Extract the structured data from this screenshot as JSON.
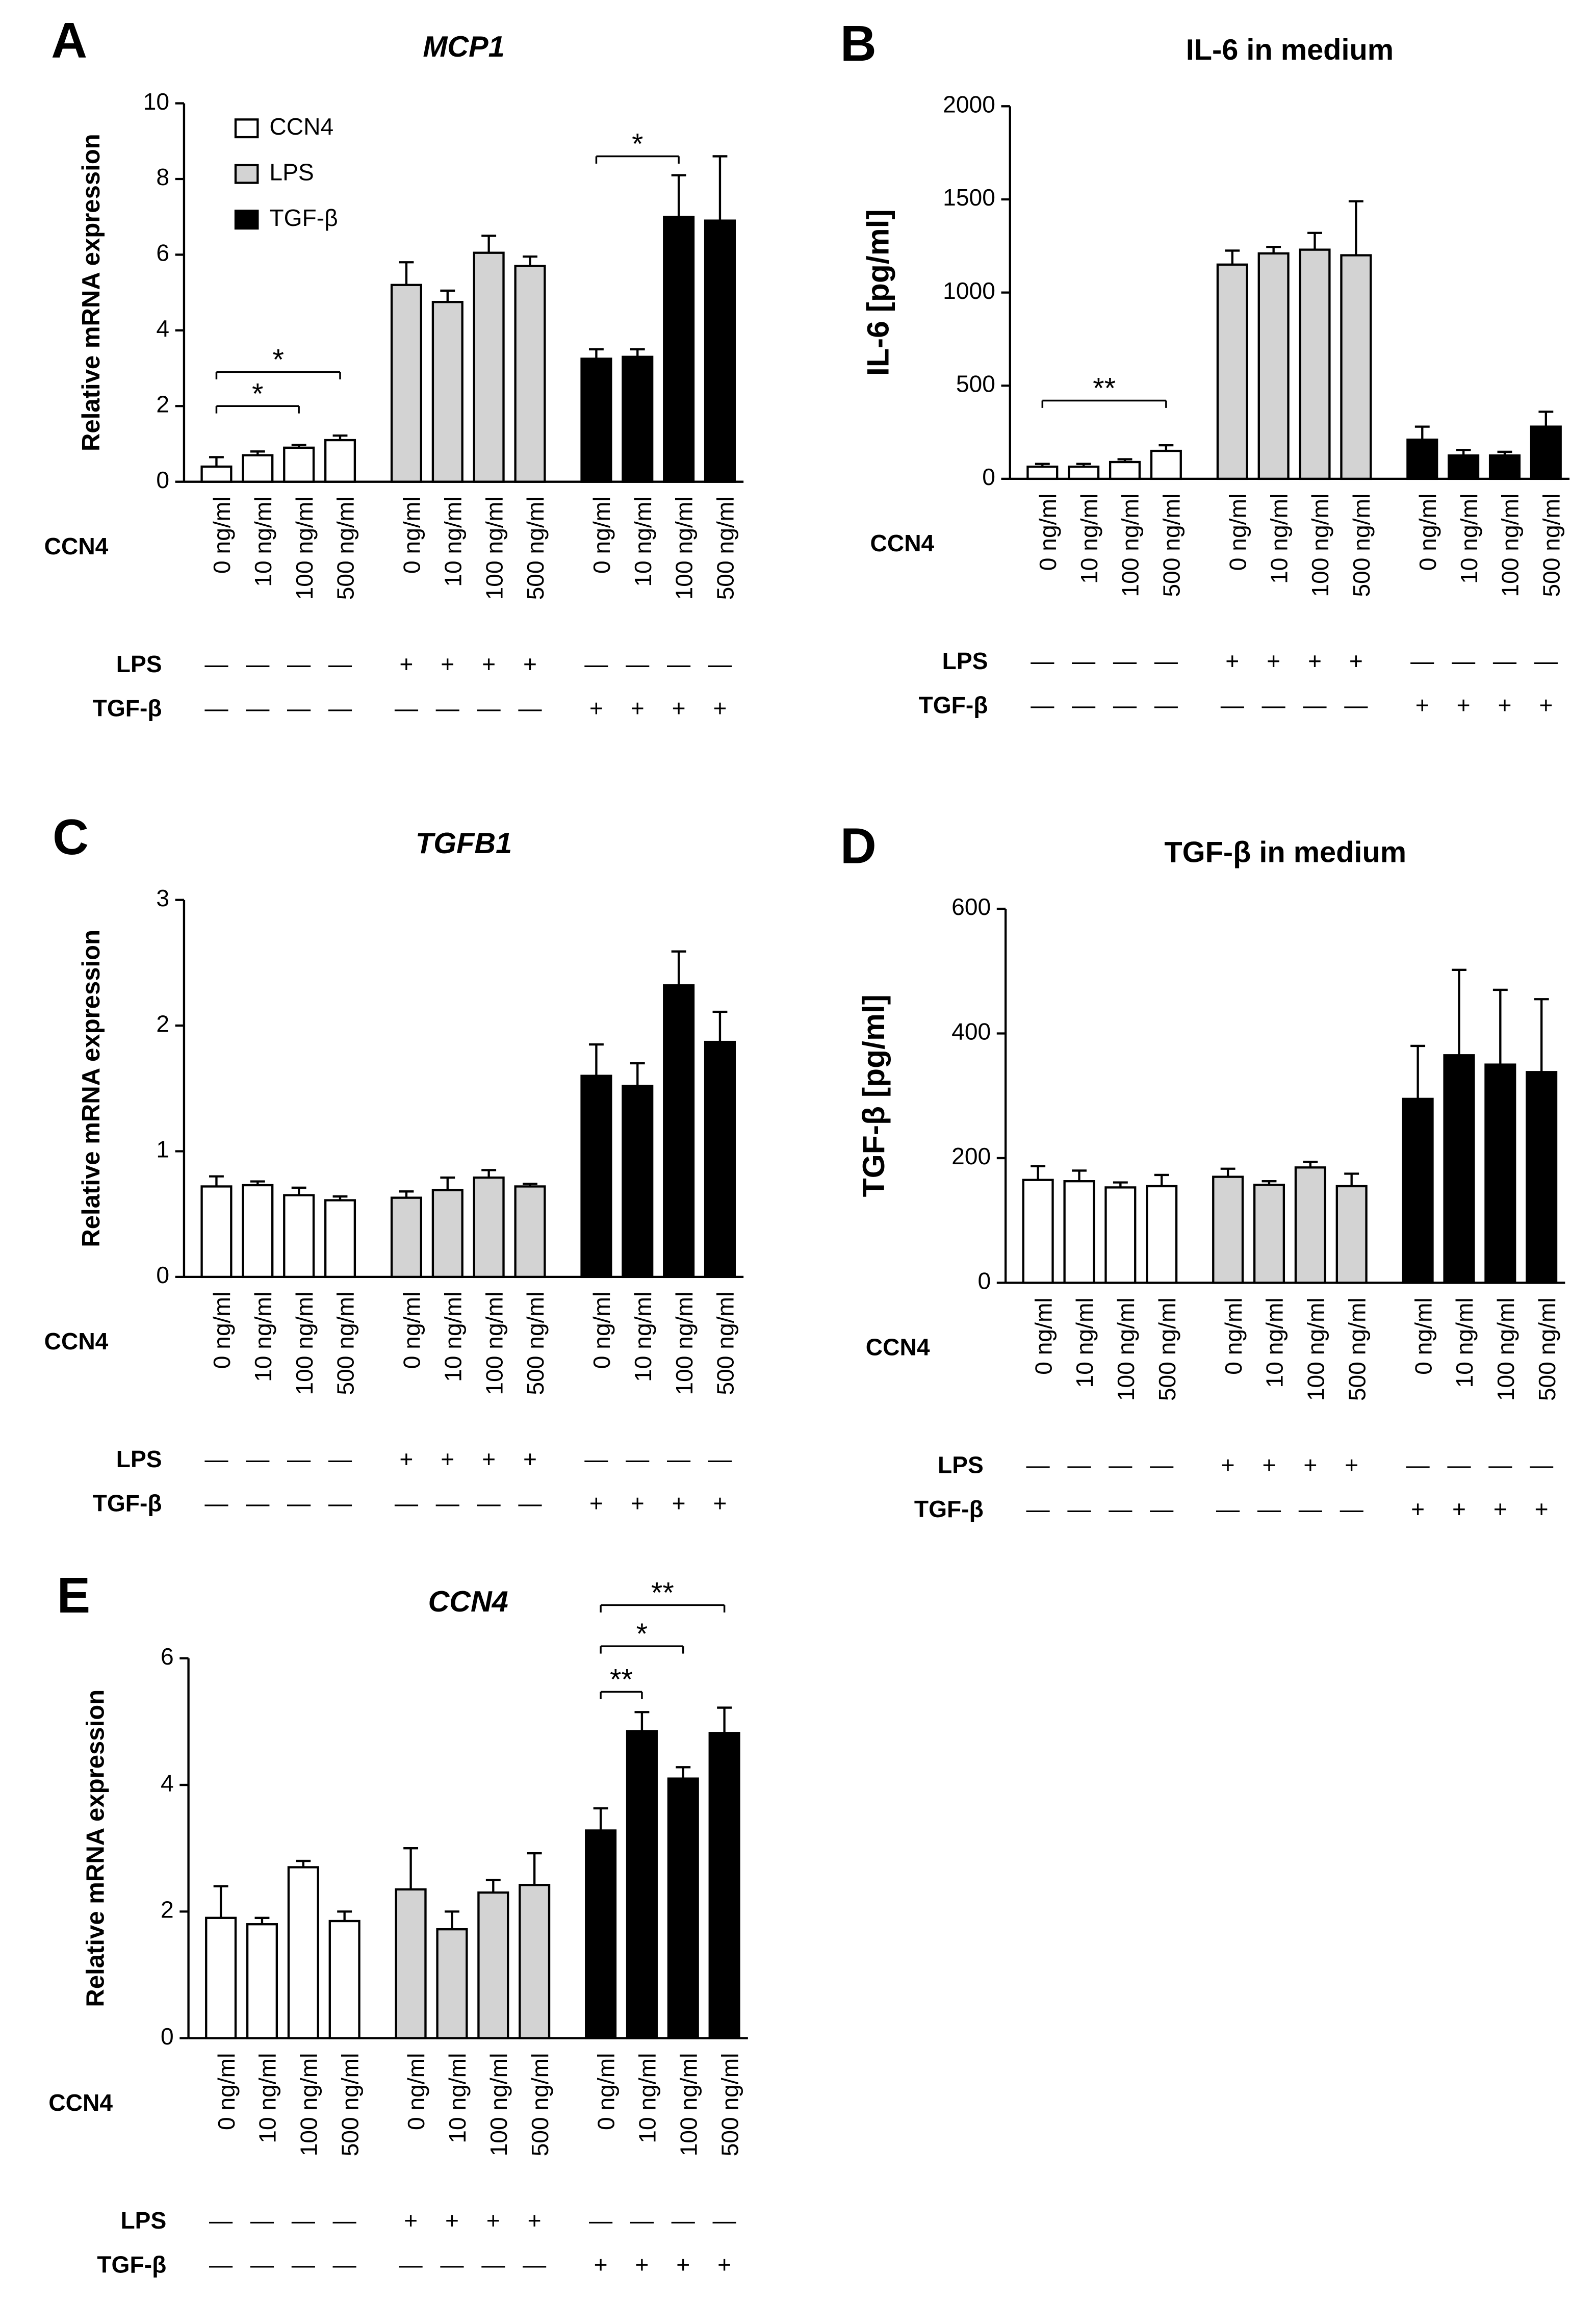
{
  "chart_data": [
    {
      "type": "bar",
      "panel": "A",
      "title": "MCP1",
      "title_italic": true,
      "ylabel": "Relative mRNA expression",
      "xlabel": "CCN4",
      "categories": [
        "0 ng/ml",
        "10 ng/ml",
        "100 ng/ml",
        "500 ng/ml"
      ],
      "ylim": [
        0,
        10
      ],
      "yticks": [
        0,
        2,
        4,
        6,
        8,
        10
      ],
      "legend": "upper left",
      "series": [
        {
          "name": "CCN4",
          "color": "#ffffff",
          "values": [
            0.4,
            0.7,
            0.9,
            1.1
          ],
          "errors": [
            0.25,
            0.1,
            0.07,
            0.12
          ]
        },
        {
          "name": "LPS",
          "color": "#d3d3d3",
          "values": [
            5.2,
            4.75,
            6.05,
            5.7
          ],
          "errors": [
            0.6,
            0.3,
            0.45,
            0.25
          ]
        },
        {
          "name": "TGF-β",
          "color": "#000000",
          "values": [
            3.25,
            3.3,
            7.0,
            6.9
          ],
          "errors": [
            0.25,
            0.2,
            1.1,
            1.7
          ]
        }
      ],
      "treatments": [
        {
          "label": "LPS",
          "signs": [
            "—",
            "—",
            "—",
            "—",
            "+",
            "+",
            "+",
            "+",
            "—",
            "—",
            "—",
            "—"
          ]
        },
        {
          "label": "TGF-β",
          "signs": [
            "—",
            "—",
            "—",
            "—",
            "—",
            "—",
            "—",
            "—",
            "+",
            "+",
            "+",
            "+"
          ]
        }
      ],
      "significance": [
        {
          "series": 0,
          "from": 0,
          "to": 3,
          "y": 2.9,
          "label": "*"
        },
        {
          "series": 0,
          "from": 0,
          "to": 2,
          "y": 2.0,
          "label": "*"
        },
        {
          "series": 2,
          "from": 0,
          "to": 2,
          "y": 8.6,
          "label": "*"
        }
      ]
    },
    {
      "type": "bar",
      "panel": "B",
      "title": "IL-6 in medium",
      "title_italic": false,
      "ylabel": "IL-6 [pg/ml]",
      "xlabel": "CCN4",
      "categories": [
        "0 ng/ml",
        "10 ng/ml",
        "100 ng/ml",
        "500 ng/ml"
      ],
      "ylim": [
        0,
        2000
      ],
      "yticks": [
        0,
        500,
        1000,
        1500,
        2000
      ],
      "series": [
        {
          "color": "#ffffff",
          "values": [
            65,
            65,
            90,
            150
          ],
          "errors": [
            15,
            15,
            15,
            30
          ]
        },
        {
          "color": "#d3d3d3",
          "values": [
            1150,
            1210,
            1230,
            1200
          ],
          "errors": [
            75,
            35,
            90,
            290
          ]
        },
        {
          "color": "#000000",
          "values": [
            210,
            125,
            125,
            280
          ],
          "errors": [
            70,
            30,
            20,
            80
          ]
        }
      ],
      "treatments": [
        {
          "label": "LPS",
          "signs": [
            "—",
            "—",
            "—",
            "—",
            "+",
            "+",
            "+",
            "+",
            "—",
            "—",
            "—",
            "—"
          ]
        },
        {
          "label": "TGF-β",
          "signs": [
            "—",
            "—",
            "—",
            "—",
            "—",
            "—",
            "—",
            "—",
            "+",
            "+",
            "+",
            "+"
          ]
        }
      ],
      "significance": [
        {
          "series": 0,
          "from": 0,
          "to": 3,
          "y": 420,
          "label": "**"
        }
      ]
    },
    {
      "type": "bar",
      "panel": "C",
      "title": "TGFB1",
      "title_italic": true,
      "ylabel": "Relative mRNA expression",
      "xlabel": "CCN4",
      "categories": [
        "0 ng/ml",
        "10 ng/ml",
        "100 ng/ml",
        "500 ng/ml"
      ],
      "ylim": [
        0,
        3
      ],
      "yticks": [
        0,
        1,
        2,
        3
      ],
      "series": [
        {
          "color": "#ffffff",
          "values": [
            0.72,
            0.73,
            0.65,
            0.61
          ],
          "errors": [
            0.08,
            0.03,
            0.06,
            0.03
          ]
        },
        {
          "color": "#d3d3d3",
          "values": [
            0.63,
            0.69,
            0.79,
            0.72
          ],
          "errors": [
            0.05,
            0.1,
            0.06,
            0.02
          ]
        },
        {
          "color": "#000000",
          "values": [
            1.6,
            1.52,
            2.32,
            1.87
          ],
          "errors": [
            0.25,
            0.18,
            0.27,
            0.24
          ]
        }
      ],
      "treatments": [
        {
          "label": "LPS",
          "signs": [
            "—",
            "—",
            "—",
            "—",
            "+",
            "+",
            "+",
            "+",
            "—",
            "—",
            "—",
            "—"
          ]
        },
        {
          "label": "TGF-β",
          "signs": [
            "—",
            "—",
            "—",
            "—",
            "—",
            "—",
            "—",
            "—",
            "+",
            "+",
            "+",
            "+"
          ]
        }
      ],
      "significance": []
    },
    {
      "type": "bar",
      "panel": "D",
      "title": "TGF-β in medium",
      "title_italic": false,
      "ylabel": "TGF-β [pg/ml]",
      "xlabel": "CCN4",
      "categories": [
        "0 ng/ml",
        "10 ng/ml",
        "100 ng/ml",
        "500 ng/ml"
      ],
      "ylim": [
        0,
        600
      ],
      "yticks": [
        0,
        200,
        400,
        600
      ],
      "series": [
        {
          "color": "#ffffff",
          "values": [
            165,
            163,
            153,
            155
          ],
          "errors": [
            22,
            17,
            8,
            18
          ]
        },
        {
          "color": "#d3d3d3",
          "values": [
            170,
            157,
            185,
            155
          ],
          "errors": [
            13,
            6,
            9,
            20
          ]
        },
        {
          "color": "#000000",
          "values": [
            295,
            365,
            350,
            338
          ],
          "errors": [
            85,
            137,
            120,
            117
          ]
        }
      ],
      "treatments": [
        {
          "label": "LPS",
          "signs": [
            "—",
            "—",
            "—",
            "—",
            "+",
            "+",
            "+",
            "+",
            "—",
            "—",
            "—",
            "—"
          ]
        },
        {
          "label": "TGF-β",
          "signs": [
            "—",
            "—",
            "—",
            "—",
            "—",
            "—",
            "—",
            "—",
            "+",
            "+",
            "+",
            "+"
          ]
        }
      ],
      "significance": []
    },
    {
      "type": "bar",
      "panel": "E",
      "title": "CCN4",
      "title_italic": true,
      "ylabel": "Relative mRNA expression",
      "xlabel": "CCN4",
      "categories": [
        "0 ng/ml",
        "10 ng/ml",
        "100 ng/ml",
        "500 ng/ml"
      ],
      "ylim": [
        0,
        6
      ],
      "yticks": [
        0,
        2,
        4,
        6
      ],
      "series": [
        {
          "color": "#ffffff",
          "values": [
            1.9,
            1.8,
            2.7,
            1.85
          ],
          "errors": [
            0.5,
            0.1,
            0.1,
            0.15
          ]
        },
        {
          "color": "#d3d3d3",
          "values": [
            2.35,
            1.72,
            2.3,
            2.42
          ],
          "errors": [
            0.65,
            0.28,
            0.2,
            0.5
          ]
        },
        {
          "color": "#000000",
          "values": [
            3.28,
            4.85,
            4.1,
            4.82
          ],
          "errors": [
            0.35,
            0.3,
            0.18,
            0.4
          ]
        }
      ],
      "treatments": [
        {
          "label": "LPS",
          "signs": [
            "—",
            "—",
            "—",
            "—",
            "+",
            "+",
            "+",
            "+",
            "—",
            "—",
            "—",
            "—"
          ]
        },
        {
          "label": "TGF-β",
          "signs": [
            "—",
            "—",
            "—",
            "—",
            "—",
            "—",
            "—",
            "—",
            "+",
            "+",
            "+",
            "+"
          ]
        }
      ],
      "significance": [
        {
          "series": 2,
          "from": 0,
          "to": 1,
          "y": 5.47,
          "label": "**"
        },
        {
          "series": 2,
          "from": 0,
          "to": 2,
          "y": 6.19,
          "label": "*"
        },
        {
          "series": 2,
          "from": 0,
          "to": 3,
          "y": 6.84,
          "label": "**"
        }
      ]
    }
  ]
}
